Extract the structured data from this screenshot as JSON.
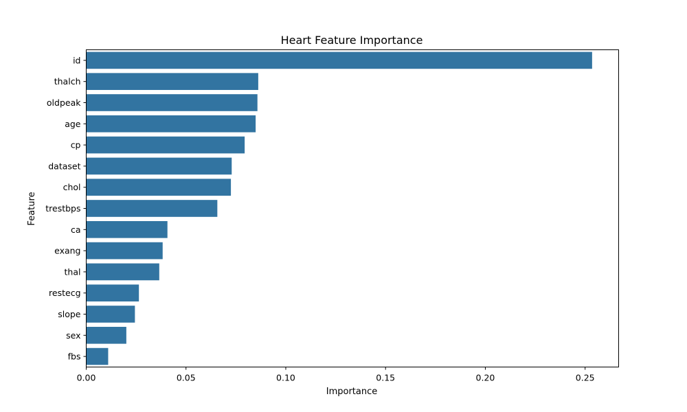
{
  "chart_data": {
    "type": "bar",
    "orientation": "horizontal",
    "title": "Heart Feature Importance",
    "xlabel": "Importance",
    "ylabel": "Feature",
    "categories": [
      "id",
      "thalch",
      "oldpeak",
      "age",
      "cp",
      "dataset",
      "chol",
      "trestbps",
      "ca",
      "exang",
      "thal",
      "restecg",
      "slope",
      "sex",
      "fbs"
    ],
    "values": [
      0.2535,
      0.0862,
      0.0858,
      0.0849,
      0.0794,
      0.0729,
      0.0725,
      0.0657,
      0.0407,
      0.0383,
      0.0366,
      0.0264,
      0.0244,
      0.0201,
      0.011
    ],
    "xlim": [
      0,
      0.2668
    ],
    "xticks": [
      0.0,
      0.05,
      0.1,
      0.15,
      0.2,
      0.25
    ],
    "xtick_labels": [
      "0.00",
      "0.05",
      "0.10",
      "0.15",
      "0.20",
      "0.25"
    ],
    "grid": false,
    "color": "#3274a1"
  }
}
